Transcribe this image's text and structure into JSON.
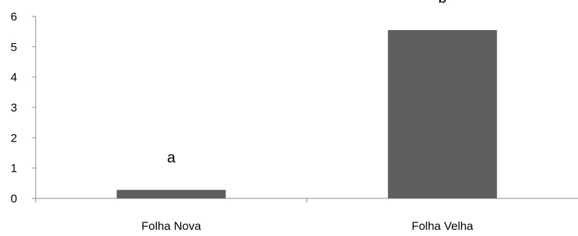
{
  "chart_data": {
    "type": "bar",
    "categories": [
      "Folha Nova",
      "Folha Velha"
    ],
    "values": [
      0.28,
      5.55
    ],
    "bar_labels": [
      "a",
      "b"
    ],
    "ylim": [
      0,
      6
    ],
    "yticks": [
      "0",
      "1",
      "2",
      "3",
      "4",
      "5",
      "6"
    ],
    "title": "",
    "xlabel": "",
    "ylabel": "",
    "grid": false,
    "legend": "none",
    "bar_color": "#5f5f5f",
    "axis_color": "#868686"
  }
}
